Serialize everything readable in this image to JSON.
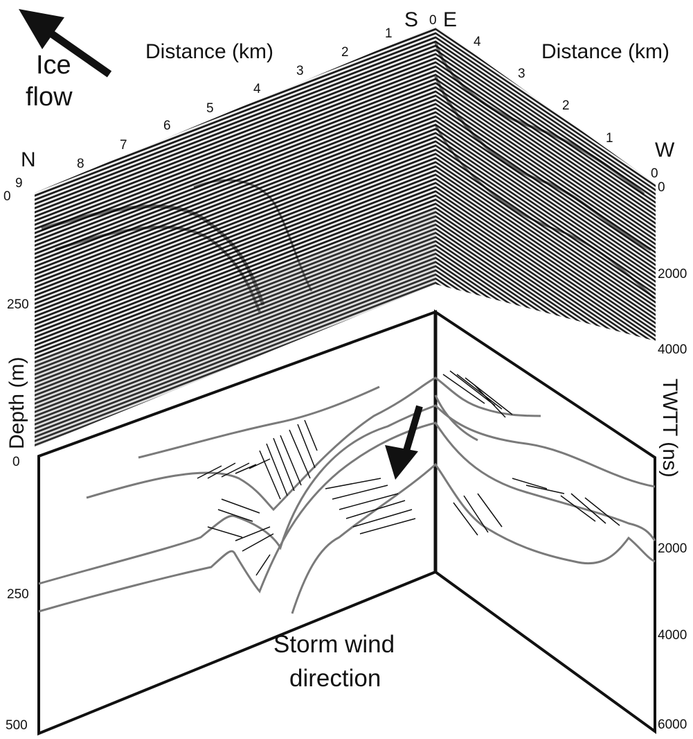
{
  "ice_flow": {
    "line1": "Ice",
    "line2": "flow"
  },
  "storm": {
    "line1": "Storm wind",
    "line2": "direction"
  },
  "north_profile": {
    "distance_label": "Distance (km)",
    "left_end": "N",
    "right_end": "S",
    "ticks": [
      "9",
      "8",
      "7",
      "6",
      "5",
      "4",
      "3",
      "2",
      "1",
      "0"
    ]
  },
  "east_profile": {
    "distance_label": "Distance (km)",
    "left_end": "E",
    "right_end": "W",
    "ticks": [
      "4",
      "3",
      "2",
      "1",
      "0"
    ]
  },
  "depth_axis": {
    "label": "Depth (m)",
    "upper_ticks": [
      "0",
      "250"
    ],
    "lower_ticks": [
      "0",
      "250",
      "500"
    ]
  },
  "twtt_axis": {
    "label": "TWTT (ns)",
    "upper_ticks": [
      "0",
      "2000",
      "4000"
    ],
    "lower_ticks": [
      "2000",
      "4000",
      "6000"
    ]
  },
  "colors": {
    "line": "#111111",
    "horizon": "#7a7a7a",
    "radar_bg": "#8c8c8c"
  }
}
